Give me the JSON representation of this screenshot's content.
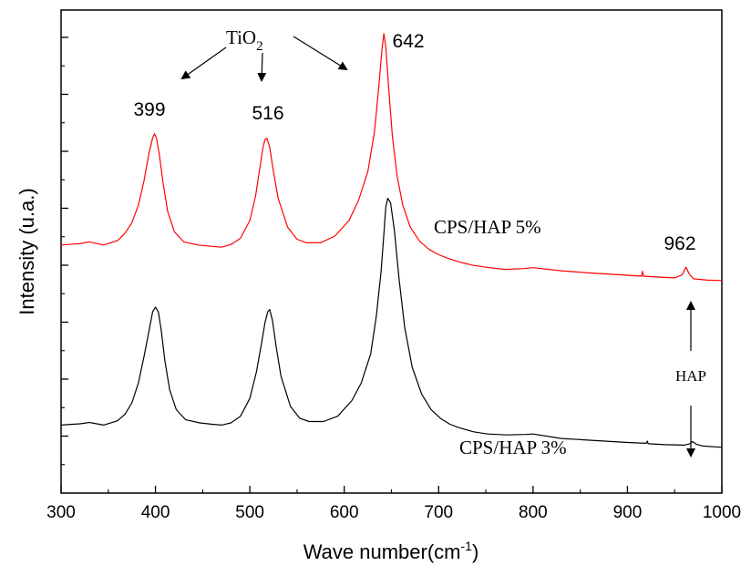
{
  "chart_data": {
    "type": "line",
    "xlabel": "Wave number(cm",
    "xlabel_sup": "-1",
    "xlabel_end": ")",
    "ylabel": "Intensity (u.a.)",
    "xlim": [
      300,
      1000
    ],
    "ylim": [
      0,
      100
    ],
    "x_ticks": [
      300,
      400,
      500,
      600,
      700,
      800,
      900,
      1000
    ],
    "y_tick_labels_shown": false,
    "series": [
      {
        "name": "CPS/HAP 5%",
        "color": "#ff0000",
        "x": [
          300,
          320,
          330,
          345,
          360,
          368,
          375,
          382,
          388,
          393,
          397,
          399,
          401,
          404,
          408,
          413,
          420,
          430,
          445,
          460,
          470,
          480,
          490,
          500,
          506,
          510,
          514,
          516,
          518,
          521,
          525,
          530,
          540,
          550,
          560,
          575,
          590,
          605,
          615,
          625,
          632,
          637,
          640,
          642,
          644,
          647,
          651,
          656,
          662,
          670,
          680,
          690,
          700,
          710,
          720,
          735,
          750,
          770,
          790,
          800,
          830,
          860,
          900,
          915,
          916,
          917,
          930,
          950,
          958,
          962,
          966,
          970,
          985,
          1000
        ],
        "values": [
          52.5,
          52.8,
          53.2,
          52.5,
          53.5,
          55.2,
          57.5,
          61.5,
          67,
          73,
          76.6,
          77.5,
          76.6,
          73,
          66.5,
          60,
          55.5,
          53.2,
          52.5,
          52.2,
          52,
          52.6,
          54,
          58,
          63.5,
          69,
          74.5,
          76.2,
          76.5,
          74.5,
          69,
          63,
          56.5,
          53.8,
          53,
          53,
          54.5,
          58,
          62.5,
          69,
          78,
          89,
          96.5,
          100,
          97,
          88,
          77,
          68,
          61.5,
          56.5,
          53.3,
          51.5,
          50.3,
          49.5,
          48.8,
          48,
          47.5,
          47,
          47.2,
          47.4,
          46.7,
          46.2,
          45.7,
          45.5,
          46.6,
          45.5,
          45.3,
          45.1,
          45.8,
          47.5,
          45.8,
          44.9,
          44.6,
          44.5
        ]
      },
      {
        "name": "CPS/HAP 3%",
        "color": "#000000",
        "x": [
          300,
          320,
          330,
          345,
          360,
          368,
          375,
          382,
          388,
          393,
          397,
          400,
          403,
          406,
          410,
          415,
          422,
          432,
          447,
          460,
          470,
          480,
          490,
          500,
          507,
          512,
          516,
          519,
          521,
          524,
          528,
          533,
          543,
          553,
          563,
          578,
          593,
          608,
          618,
          628,
          634,
          639,
          642,
          644,
          646,
          649,
          653,
          658,
          664,
          672,
          682,
          692,
          702,
          712,
          722,
          737,
          752,
          772,
          792,
          800,
          830,
          860,
          900,
          920,
          921,
          922,
          940,
          960,
          966,
          969,
          973,
          980,
          1000
        ],
        "values": [
          12,
          12.3,
          12.6,
          12,
          13,
          14.5,
          17,
          21.5,
          27.5,
          33,
          37.5,
          38.5,
          37.5,
          33.5,
          26.5,
          20,
          15.5,
          13.2,
          12.5,
          12.2,
          12,
          12.5,
          14,
          18,
          24,
          30,
          35,
          37.5,
          38,
          35.5,
          29.5,
          23,
          16.2,
          13.5,
          12.8,
          12.8,
          14,
          17.5,
          21.5,
          28,
          36.5,
          46.5,
          55,
          61,
          63,
          62,
          56,
          45,
          34,
          25,
          19,
          15.5,
          13.5,
          12.2,
          11.4,
          10.5,
          10,
          9.8,
          9.9,
          10,
          9,
          8.6,
          8.1,
          7.9,
          8.4,
          7.8,
          7.6,
          7.5,
          7.8,
          8.3,
          7.7,
          7.3,
          7
        ]
      }
    ],
    "annotations": {
      "tio2_base": "TiO",
      "tio2_sub": "2",
      "peaks": [
        "399",
        "516",
        "642",
        "962"
      ],
      "hap": "HAP",
      "legend_5": "CPS/HAP 5%",
      "legend_3": "CPS/HAP 3%"
    }
  }
}
